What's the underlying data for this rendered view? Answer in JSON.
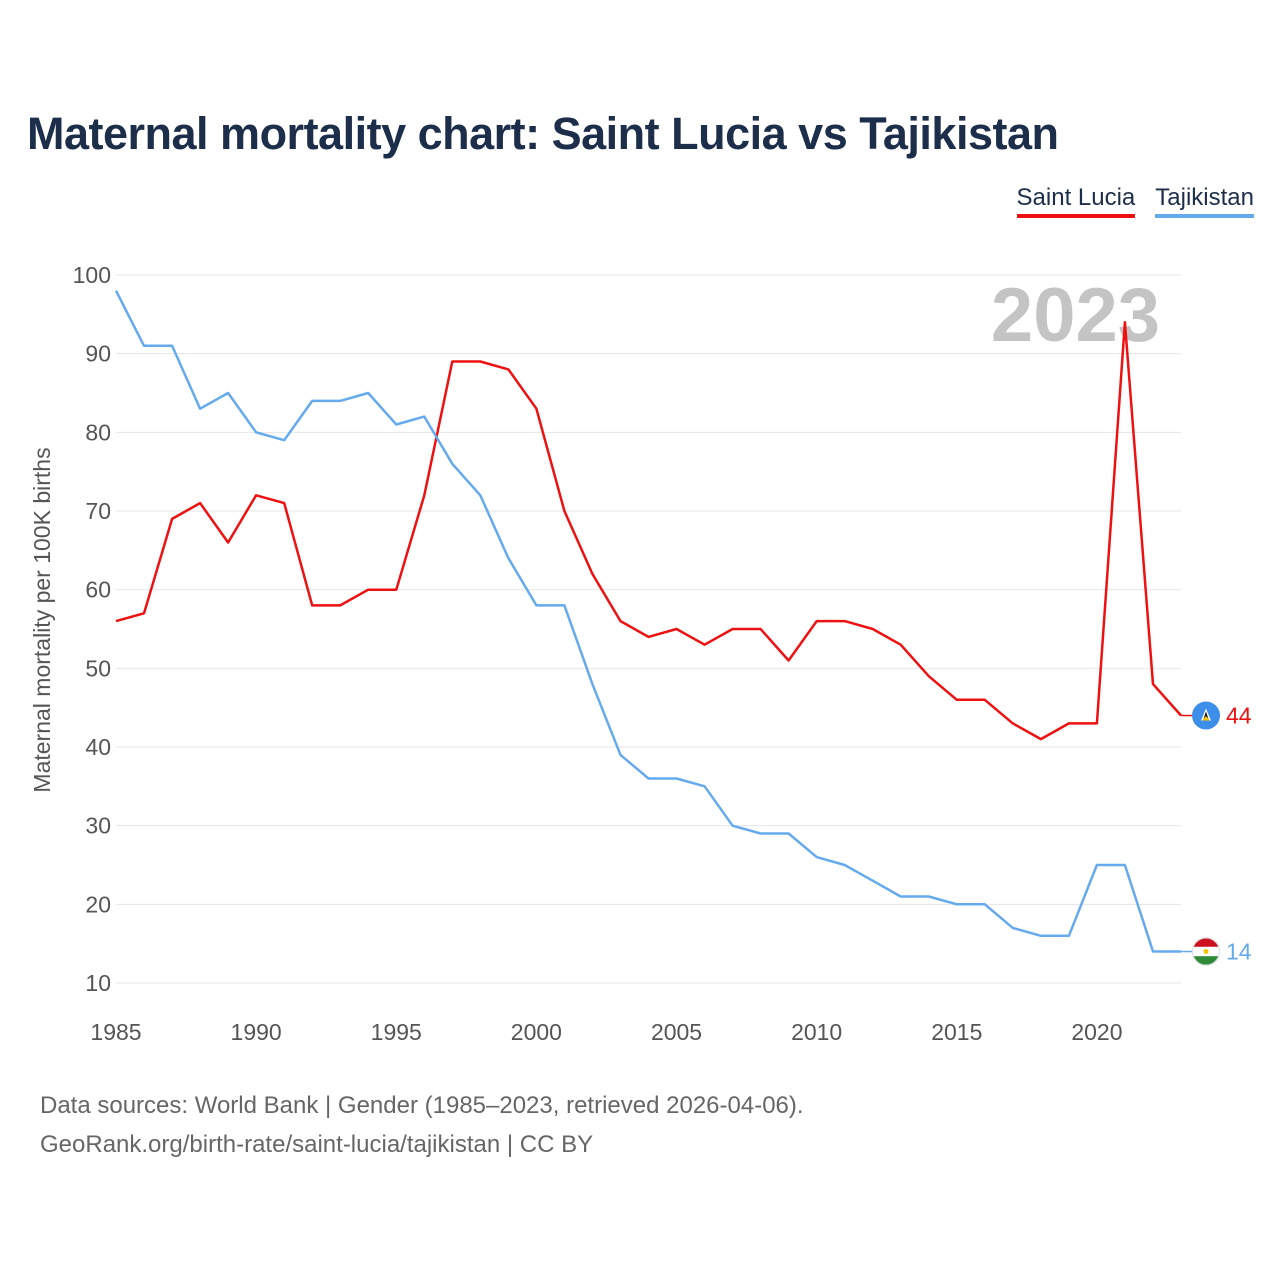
{
  "chart_data": {
    "type": "line",
    "title": "Maternal mortality chart: Saint Lucia vs Tajikistan",
    "ylabel": "Maternal mortality per 100K births",
    "xlabel": "",
    "year_label": "2023",
    "xlim": [
      1985,
      2023
    ],
    "ylim": [
      10,
      100
    ],
    "yticks": [
      10,
      20,
      30,
      40,
      50,
      60,
      70,
      80,
      90,
      100
    ],
    "xticks": [
      1985,
      1990,
      1995,
      2000,
      2005,
      2010,
      2015,
      2020
    ],
    "grid": true,
    "legend": "top-right",
    "x": [
      1985,
      1986,
      1987,
      1988,
      1989,
      1990,
      1991,
      1992,
      1993,
      1994,
      1995,
      1996,
      1997,
      1998,
      1999,
      2000,
      2001,
      2002,
      2003,
      2004,
      2005,
      2006,
      2007,
      2008,
      2009,
      2010,
      2011,
      2012,
      2013,
      2014,
      2015,
      2016,
      2017,
      2018,
      2019,
      2020,
      2021,
      2022,
      2023
    ],
    "series": [
      {
        "name": "Saint Lucia",
        "color": "#ee1111",
        "flag_icon": "saint-lucia-flag-icon",
        "end_label": "44",
        "values": [
          56,
          57,
          69,
          71,
          66,
          72,
          71,
          58,
          58,
          60,
          60,
          72,
          89,
          89,
          88,
          83,
          70,
          62,
          56,
          54,
          55,
          53,
          55,
          55,
          51,
          56,
          56,
          55,
          53,
          49,
          46,
          46,
          43,
          41,
          43,
          43,
          94,
          48,
          44
        ]
      },
      {
        "name": "Tajikistan",
        "color": "#66aaee",
        "flag_icon": "tajikistan-flag-icon",
        "end_label": "14",
        "values": [
          98,
          91,
          91,
          83,
          85,
          80,
          79,
          84,
          84,
          85,
          81,
          82,
          76,
          72,
          64,
          58,
          58,
          48,
          39,
          36,
          36,
          35,
          30,
          29,
          29,
          26,
          25,
          23,
          21,
          21,
          20,
          20,
          17,
          16,
          16,
          25,
          25,
          14,
          14
        ]
      }
    ]
  },
  "footer": {
    "line1": "Data sources: World Bank | Gender (1985–2023, retrieved 2026-04-06).",
    "line2": "GeoRank.org/birth-rate/saint-lucia/tajikistan | CC BY"
  }
}
